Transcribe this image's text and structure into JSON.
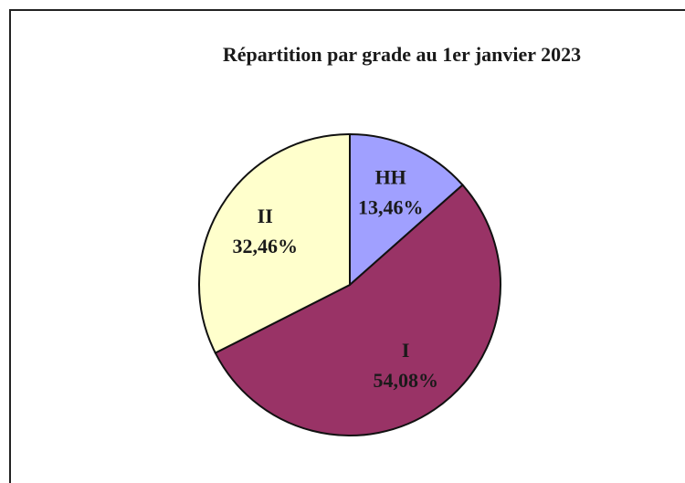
{
  "chart_data": {
    "type": "pie",
    "title": "Répartition par grade au 1er janvier 2023",
    "categories": [
      "HH",
      "I",
      "II"
    ],
    "values": [
      13.46,
      54.08,
      32.46
    ],
    "value_labels": [
      "13,46%",
      "54,08%",
      "32,46%"
    ],
    "colors": [
      "#a0a0ff",
      "#993366",
      "#ffffcc"
    ]
  }
}
